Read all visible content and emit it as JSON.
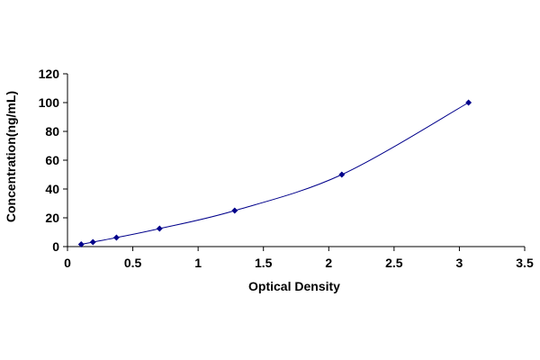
{
  "chart_data": {
    "type": "scatter",
    "title": "",
    "xlabel": "Optical Density",
    "ylabel": "Concentration(ng/mL)",
    "xlim": [
      0,
      3.5
    ],
    "ylim": [
      0,
      120
    ],
    "x_ticks": [
      "0",
      "0.5",
      "1",
      "1.5",
      "2",
      "2.5",
      "3",
      "3.5"
    ],
    "y_ticks": [
      "0",
      "20",
      "40",
      "60",
      "80",
      "100",
      "120"
    ],
    "grid": false,
    "legend": "none",
    "series": [
      {
        "x": [
          0.105,
          0.195,
          0.375,
          0.705,
          1.28,
          2.1,
          3.07
        ],
        "y": [
          1.56,
          3.13,
          6.25,
          12.5,
          25,
          50,
          100
        ],
        "marker": "diamond",
        "trendline": "smooth curve",
        "color": "#00008b"
      }
    ]
  }
}
